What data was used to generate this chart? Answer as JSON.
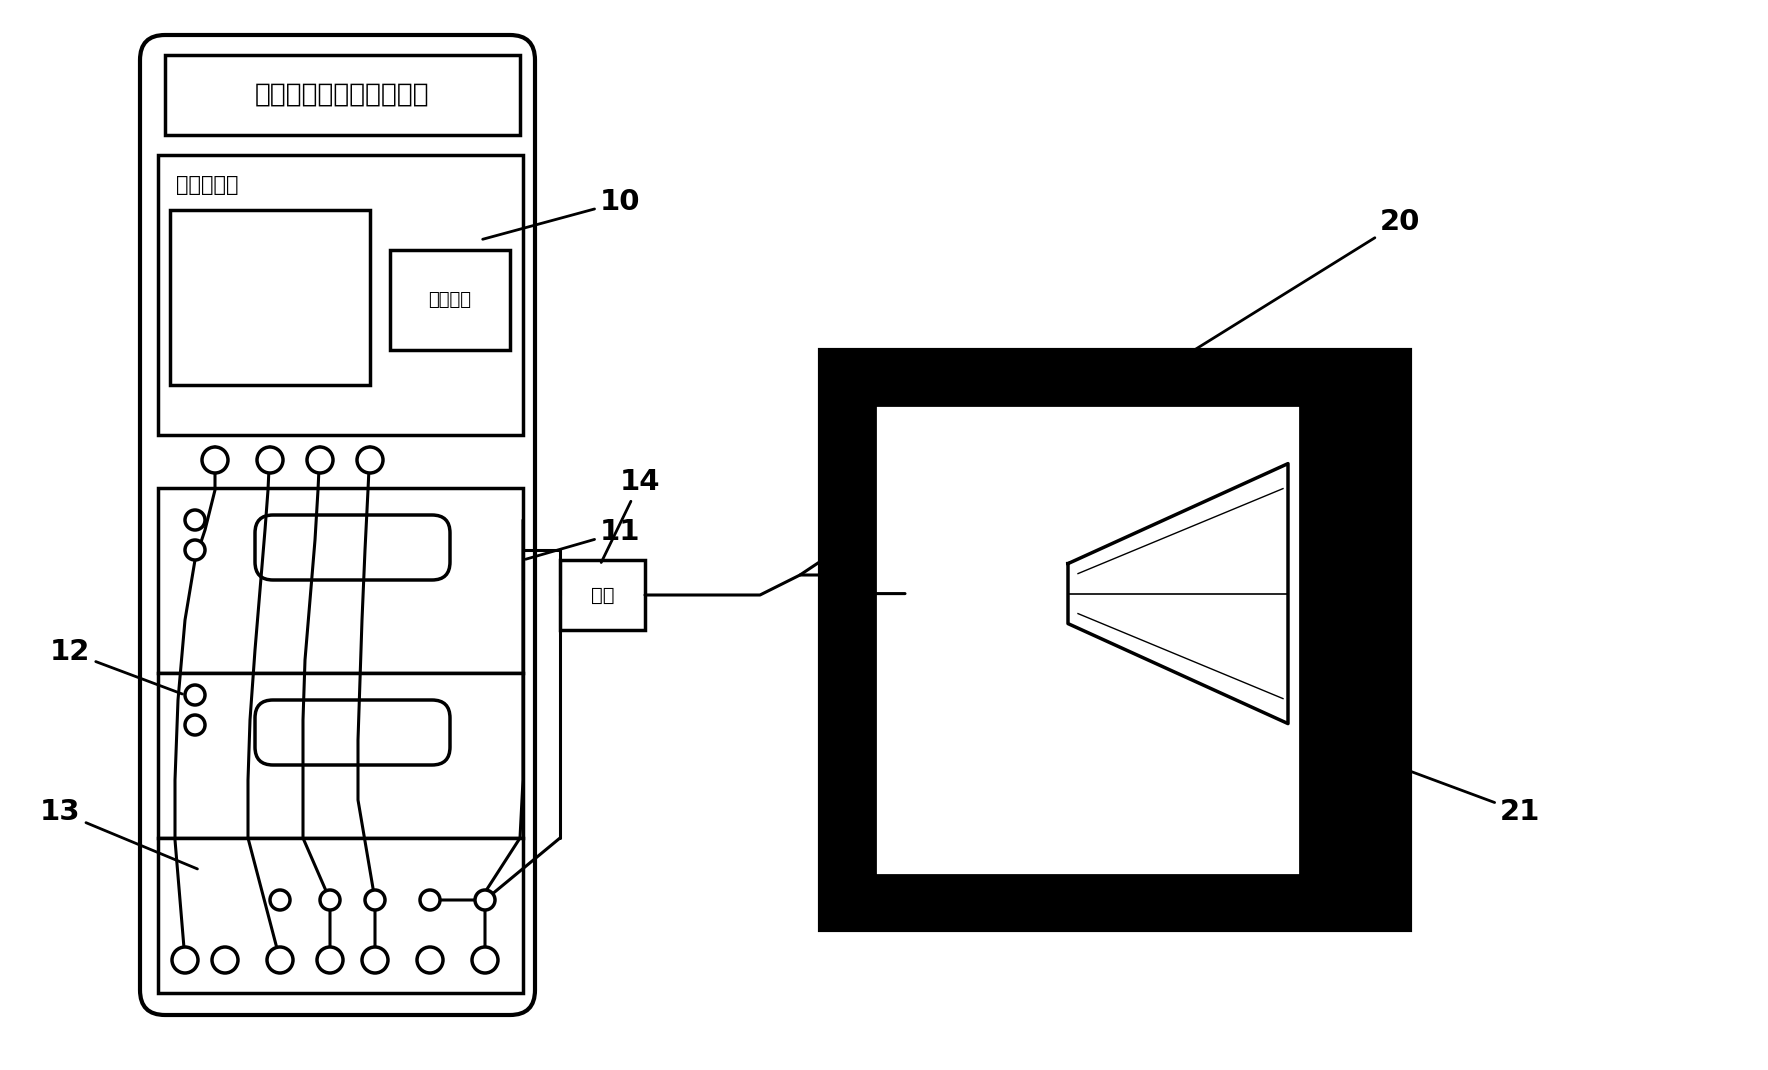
{
  "bg_color": "#ffffff",
  "line_color": "#000000",
  "title_text": "大功率互调失真测试系统",
  "label_network_analyzer": "网络分析仪",
  "label_operation_keys": "操作按键",
  "label_load": "负载",
  "ref_10": "10",
  "ref_11": "11",
  "ref_12": "12",
  "ref_13": "13",
  "ref_14": "14",
  "ref_20": "20",
  "ref_21": "21"
}
